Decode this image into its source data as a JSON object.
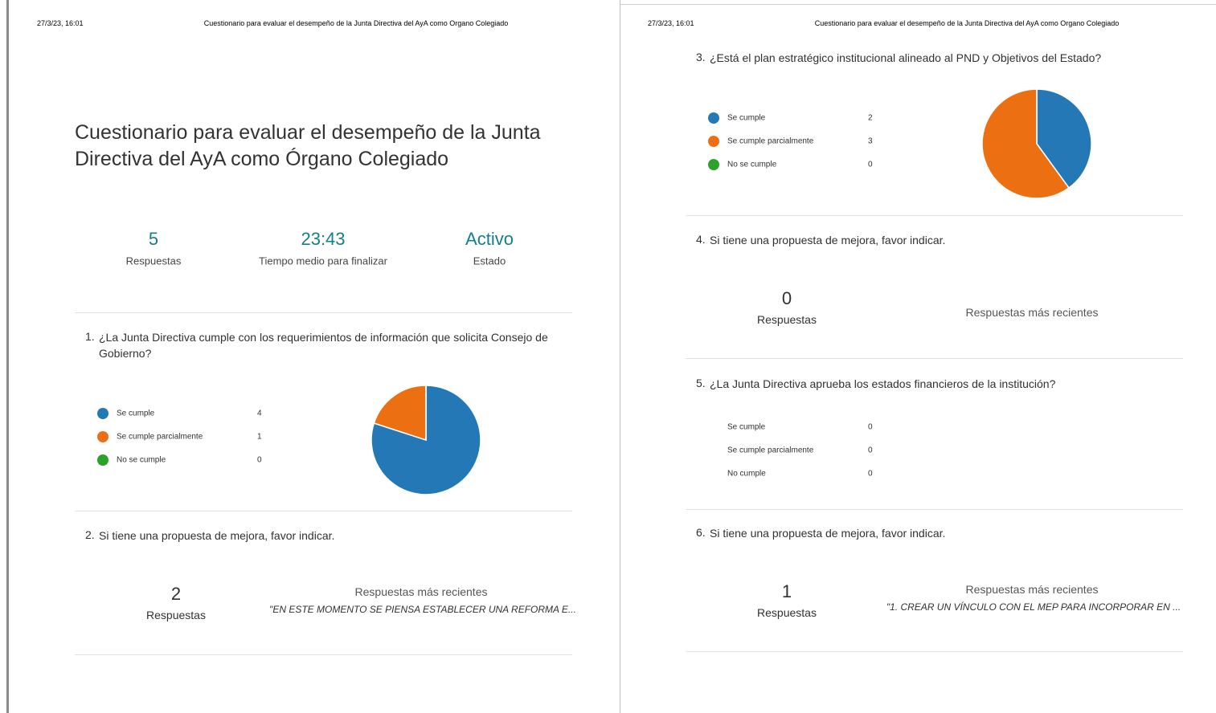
{
  "pages": [
    {
      "header": {
        "date": "27/3/23, 16:01",
        "title": "Cuestionario para evaluar el desempeño de la Junta Directiva del AyA como Organo Colegiado"
      },
      "form_title": "Cuestionario para evaluar el desempeño de la Junta Directiva del AyA como Órgano Colegiado",
      "stats": [
        {
          "value": 5,
          "label": "Respuestas"
        },
        {
          "value": "23:43",
          "label": "Tiempo medio para finalizar"
        },
        {
          "value": "Activo",
          "label": "Estado"
        }
      ],
      "questions": [
        {
          "number": "1.",
          "text": "¿La Junta Directiva cumple con los requerimientos de información que solicita Consejo de Gobierno?",
          "chart": "pie",
          "options": [
            {
              "label": "Se cumple",
              "count": 4,
              "color": "#2478b5"
            },
            {
              "label": "Se cumple parcialmente",
              "count": 1,
              "color": "#ec7011"
            },
            {
              "label": "No se cumple",
              "count": 0,
              "color": "#2ea12b"
            }
          ]
        },
        {
          "number": "2.",
          "text": "Si tiene una propuesta de mejora, favor indicar.",
          "responses": 2,
          "responses_label": "Respuestas",
          "recent_label": "Respuestas más recientes",
          "recent": "\"EN ESTE MOMENTO SE PIENSA ESTABLECER UNA REFORMA E..."
        }
      ]
    },
    {
      "header": {
        "date": "27/3/23, 16:01",
        "title": "Cuestionario para evaluar el desempeño de la Junta Directiva del AyA como Organo Colegiado"
      },
      "questions": [
        {
          "number": "3.",
          "text": "¿Está el plan estratégico institucional alineado al PND y Objetivos del Estado?",
          "chart": "pie",
          "options": [
            {
              "label": "Se cumple",
              "count": 2,
              "color": "#2478b5"
            },
            {
              "label": "Se cumple parcialmente",
              "count": 3,
              "color": "#ec7011"
            },
            {
              "label": "No se cumple",
              "count": 0,
              "color": "#2ea12b"
            }
          ]
        },
        {
          "number": "4.",
          "text": "Si tiene una propuesta de mejora, favor indicar.",
          "responses": 0,
          "responses_label": "Respuestas",
          "recent_label": "Respuestas más recientes"
        },
        {
          "number": "5.",
          "text": "¿La Junta Directiva aprueba los estados financieros de la institución?",
          "options": [
            {
              "label": "Se cumple",
              "count": 0
            },
            {
              "label": "Se cumple parcialmente",
              "count": 0
            },
            {
              "label": "No cumple",
              "count": 0
            }
          ]
        },
        {
          "number": "6.",
          "text": "Si tiene una propuesta de mejora, favor indicar.",
          "responses": 1,
          "responses_label": "Respuestas",
          "recent_label": "Respuestas más recientes",
          "recent": "\"1. CREAR UN VÍNCULO CON EL MEP PARA INCORPORAR EN ..."
        }
      ]
    }
  ]
}
